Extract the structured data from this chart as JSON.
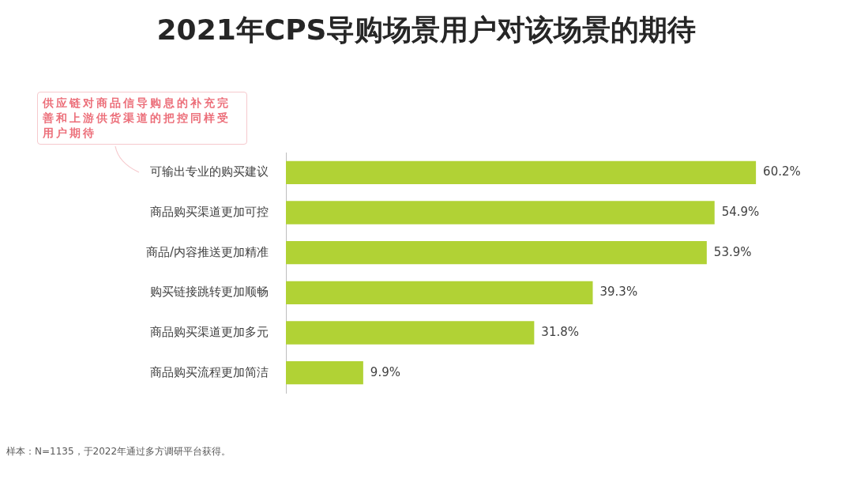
{
  "chart_data": {
    "type": "bar",
    "orientation": "horizontal",
    "title": "2021年CPS导购场景用户对该场景的期待",
    "categories": [
      "可输出专业的购买建议",
      "商品购买渠道更加可控",
      "商品/内容推送更加精准",
      "购买链接跳转更加顺畅",
      "商品购买渠道更加多元",
      "商品购买流程更加简洁"
    ],
    "values": [
      60.2,
      54.9,
      53.9,
      39.3,
      31.8,
      9.9
    ],
    "value_labels": [
      "60.2%",
      "54.9%",
      "53.9%",
      "39.3%",
      "31.8%",
      "9.9%"
    ],
    "color": "#b1d235",
    "tick_labels": "y",
    "legend": false,
    "annotations": [
      "供应链对商品信导购息的补充完善和上游供货渠道的把控同样受用户期待",
      "样本：N=1135，于2022年通过多方调研平台获得。"
    ]
  }
}
